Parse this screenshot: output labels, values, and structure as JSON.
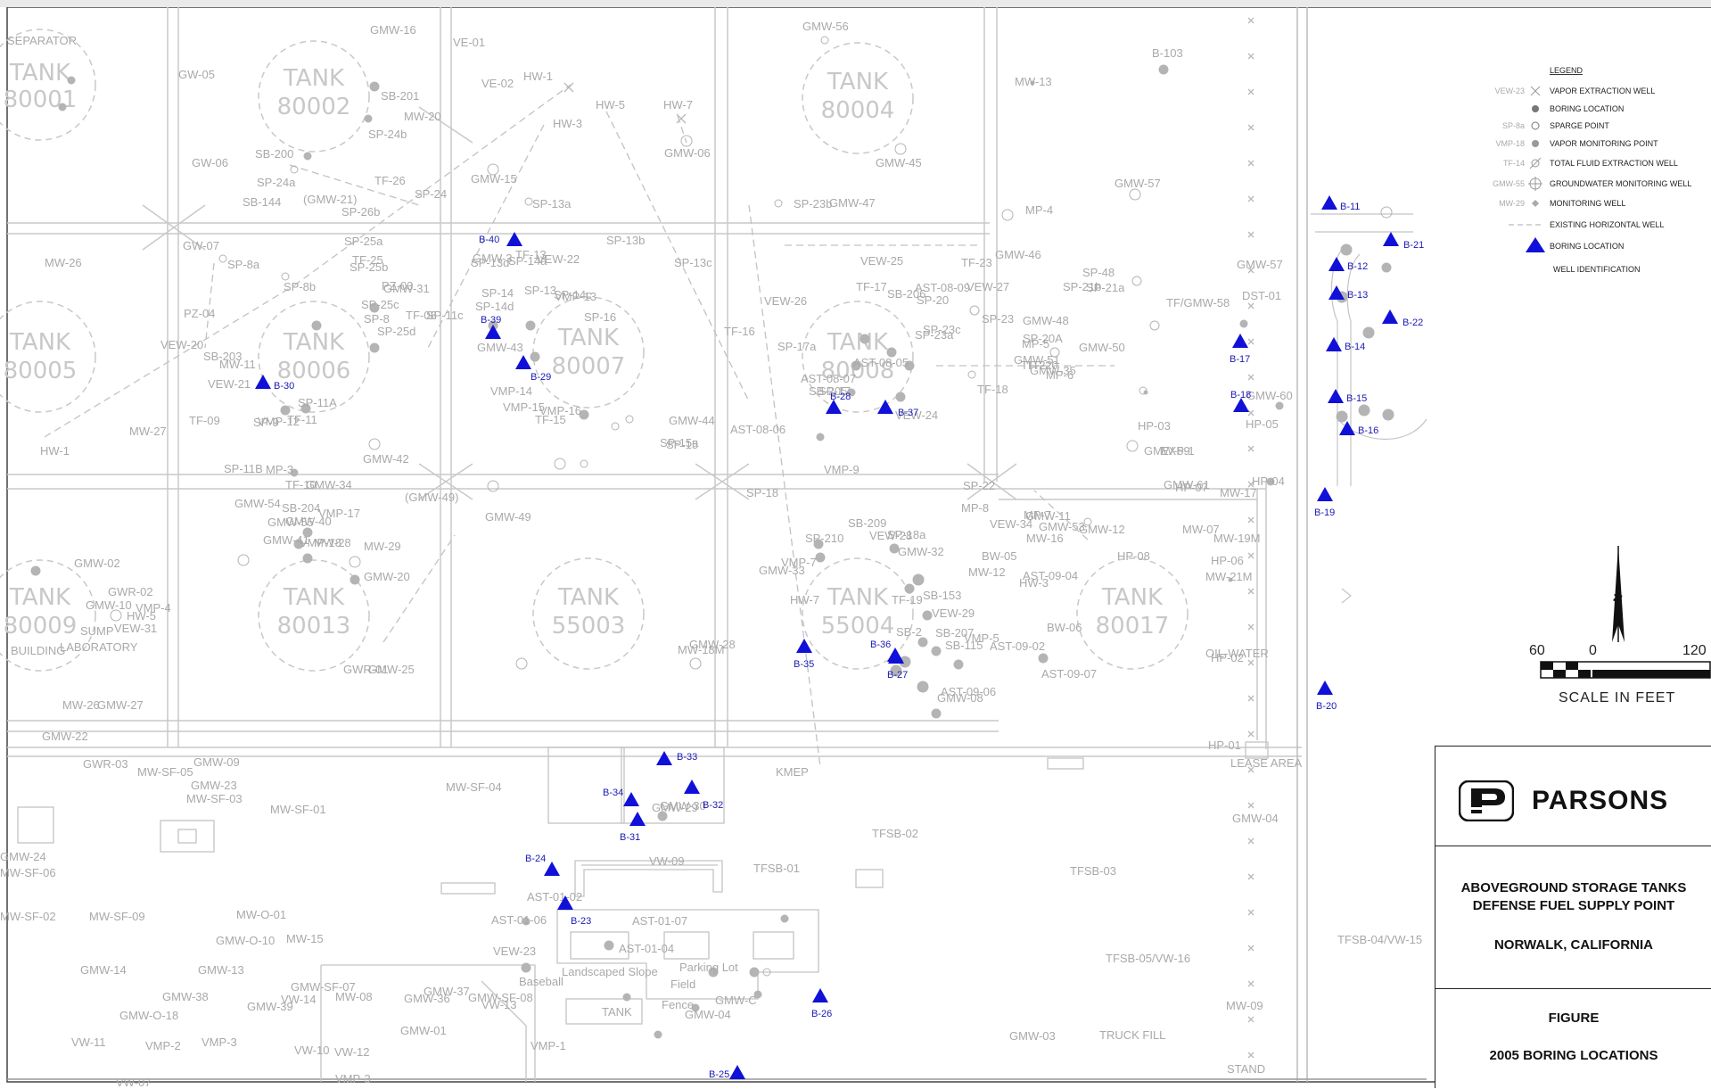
{
  "tanks": [
    {
      "name": "TANK",
      "number": "80001"
    },
    {
      "name": "TANK",
      "number": "80002"
    },
    {
      "name": "TANK",
      "number": "80004"
    },
    {
      "name": "TANK",
      "number": "80005"
    },
    {
      "name": "TANK",
      "number": "80006"
    },
    {
      "name": "TANK",
      "number": "80007"
    },
    {
      "name": "TANK",
      "number": "80008"
    },
    {
      "name": "TANK",
      "number": "80009"
    },
    {
      "name": "TANK",
      "number": "80013"
    },
    {
      "name": "TANK",
      "number": "55003"
    },
    {
      "name": "TANK",
      "number": "55004"
    },
    {
      "name": "TANK",
      "number": "80017"
    }
  ],
  "borings": [
    "B-11",
    "B-12",
    "B-13",
    "B-14",
    "B-15",
    "B-16",
    "B-17",
    "B-18",
    "B-19",
    "B-20",
    "B-21",
    "B-22",
    "B-23",
    "B-24",
    "B-25",
    "B-26",
    "B-27",
    "B-28",
    "B-29",
    "B-30",
    "B-31",
    "B-32",
    "B-33",
    "B-34",
    "B-35",
    "B-36",
    "B-37",
    "B-39",
    "B-40"
  ],
  "well_labels": [
    "GMW-16",
    "VE-01",
    "GMW-56",
    "B-103",
    "MW-13",
    "HW-1",
    "VE-02",
    "HW-5",
    "HW-7",
    "HW-3",
    "GMW-06",
    "SB-201",
    "MW-20",
    "SB-200",
    "SP-24a",
    "SP-24b",
    "GMW-15",
    "SB-144",
    "(GMW-21)",
    "SP-26b",
    "TF-26",
    "SP-24",
    "GMW-45",
    "GMW-57",
    "GMW-47",
    "SP-23b",
    "SP-13a",
    "GW-05",
    "GW-06",
    "GW-07",
    "MW-26",
    "SP-8a",
    "SP-8b",
    "SP-25a",
    "SP-25b",
    "TF-25",
    "PZ-03",
    "SP-25c",
    "GMW-31",
    "TF-08",
    "PZ-04",
    "SP-25d",
    "SP-11c",
    "SP-8",
    "SB-203",
    "MW-11",
    "VEW-20",
    "VEW-21",
    "SP-9",
    "VMP-12",
    "TF-11",
    "SP-11A",
    "TF-09",
    "MW-27",
    "HW-1",
    "SP-11B",
    "GMW-42",
    "SP-13b",
    "TF-13",
    "SP-13c",
    "GMW-3",
    "SP-13d",
    "SP-14a",
    "VEW-22",
    "VMP-13",
    "SP-14",
    "SP-13",
    "SP-14c",
    "SP-14d",
    "GMW-43",
    "VMP-14",
    "VMP-15",
    "TF-15",
    "VMP-16",
    "SP-15",
    "SP-15a",
    "GMW-44",
    "SP-16",
    "TF-16",
    "SP-17a",
    "SP-17",
    "SB-205",
    "AST-08-05",
    "VEW-26",
    "AST-08-06",
    "VEW-24",
    "AST-08-07",
    "VEW-25",
    "SB-206",
    "TF-17",
    "SP-20",
    "AST-08-09",
    "VEW-27",
    "TF-23",
    "GMW-46",
    "SP-23",
    "SP-23a",
    "SP-23c",
    "TF-22",
    "GMW-35",
    "SP-22",
    "TF-18",
    "SP-20A",
    "TF-20",
    "GMW-50",
    "MP-6",
    "GMW-51",
    "MP-5",
    "GMW-48",
    "MP-4",
    "SP-48",
    "SP-21a",
    "SP-21b",
    "TF/GMW-58",
    "GMW-57",
    "DST-01",
    "GMW-60",
    "HP-05",
    "GMW-61",
    "HP-04",
    "HP-03",
    "GMW-59",
    "EXP-1",
    "MW-17",
    "HP-08",
    "HP-07",
    "HP-06",
    "HP-02",
    "HP-01",
    "MP-3",
    "GMW-34",
    "TF-10",
    "GMW-54",
    "SB-204",
    "GMW-55",
    "GMW-40",
    "VMP-17",
    "GMW-41",
    "VMP-18",
    "MW-28",
    "GMW-20",
    "MW-29",
    "(GMW-49)",
    "GMW-49",
    "SP-18",
    "VMP-9",
    "SB-209",
    "SP-18a",
    "SP-210",
    "VEW-28",
    "VMP-7",
    "GMW-32",
    "TF-19",
    "SB-153",
    "GMW-33",
    "HW-7",
    "MP-8",
    "VEW-34",
    "MW-16",
    "MP-7",
    "GMW-53",
    "VEW-29",
    "SB-2",
    "VMP-5",
    "SB-115",
    "AST-09-02",
    "AST-09-06",
    "GMW-08",
    "AST-09-07",
    "BW-06",
    "AST-09-04",
    "HW-3",
    "MW-12",
    "BW-05",
    "SB-207",
    "GMW-11",
    "GMW-12",
    "MW-19M",
    "MW-07",
    "MW-21M",
    "OIL-WATER",
    "SEPARATOR",
    "GMW-02",
    "GWR-02",
    "GMW-10",
    "HW-5",
    "SUMP",
    "VEW-31",
    "VMP-4",
    "LABORATORY",
    "BUILDING",
    "MW-26",
    "GMW-27",
    "GWR-01",
    "GMW-25",
    "MW-18M",
    "GMW-28",
    "GMW-22",
    "GWR-03",
    "GMW-09",
    "GMW-23",
    "MW-SF-05",
    "MW-SF-03",
    "MW-SF-01",
    "MW-SF-04",
    "KMEP",
    "LEASE AREA",
    "GMW-29",
    "GMW-30",
    "GMW-24",
    "MW-SF-06",
    "MW-SF-02",
    "MW-SF-09",
    "MW-O-01",
    "GMW-O-10",
    "MW-15",
    "GMW-14",
    "GMW-13",
    "GMW-38",
    "GMW-39",
    "GMW-O-18",
    "GMW-SF-07",
    "MW-08",
    "GMW-37",
    "GMW-SF-08",
    "GMW-36",
    "VW-14",
    "GMW-01",
    "VW-13",
    "VW-11",
    "VMP-2",
    "VMP-3",
    "VW-10",
    "VW-12",
    "VMP-1",
    "VMP-3",
    "VW-07",
    "VW-09",
    "TFSB-01",
    "TFSB-02",
    "TFSB-03",
    "GMW-04",
    "TFSB-04/VW-15",
    "TFSB-05/VW-16",
    "MW-09",
    "GMW-03",
    "TRUCK FILL",
    "STAND",
    "AST-01-02",
    "AST-01-06",
    "VEW-23",
    "AST-01-07",
    "AST-01-04",
    "Parking Lot",
    "Landscaped Slope",
    "Baseball",
    "Field",
    "Fence",
    "GMW-C",
    "TANK",
    "GMW-04"
  ],
  "legend": {
    "title": "LEGEND",
    "items": [
      {
        "code": "VEW-23",
        "symbol": "vapor-extraction-well",
        "label": "VAPOR EXTRACTION WELL"
      },
      {
        "code": "",
        "symbol": "boring-location-dot",
        "label": "BORING LOCATION"
      },
      {
        "code": "SP-8a",
        "symbol": "sparge-point",
        "label": "SPARGE POINT"
      },
      {
        "code": "VMP-18",
        "symbol": "vapor-monitoring-point",
        "label": "VAPOR MONITORING POINT"
      },
      {
        "code": "TF-14",
        "symbol": "total-fluid-extraction-well",
        "label": "TOTAL FLUID EXTRACTION WELL"
      },
      {
        "code": "GMW-55",
        "symbol": "groundwater-monitoring-well",
        "label": "GROUNDWATER MONITORING WELL"
      },
      {
        "code": "MW-29",
        "symbol": "monitoring-well",
        "label": "MONITORING WELL"
      },
      {
        "code": "",
        "symbol": "horizontal-well-line",
        "label": "EXISTING HORIZONTAL WELL"
      },
      {
        "code": "",
        "symbol": "boring-triangle",
        "label": "BORING LOCATION"
      },
      {
        "code": "",
        "symbol": "",
        "label": "WELL IDENTIFICATION"
      }
    ]
  },
  "scale": {
    "ticks": [
      "60",
      "0",
      "120"
    ],
    "label": "SCALE IN FEET"
  },
  "north_label": "N",
  "title_block": {
    "company": "PARSONS",
    "line1": "ABOVEGROUND STORAGE TANKS",
    "line2": "DEFENSE FUEL SUPPLY POINT",
    "line3": "NORWALK, CALIFORNIA",
    "figure_label": "FIGURE",
    "figure_title": "2005 BORING LOCATIONS"
  },
  "colors": {
    "boring": "#1010d8",
    "linework": "#c6c6c6",
    "well": "#b4b4b4"
  }
}
